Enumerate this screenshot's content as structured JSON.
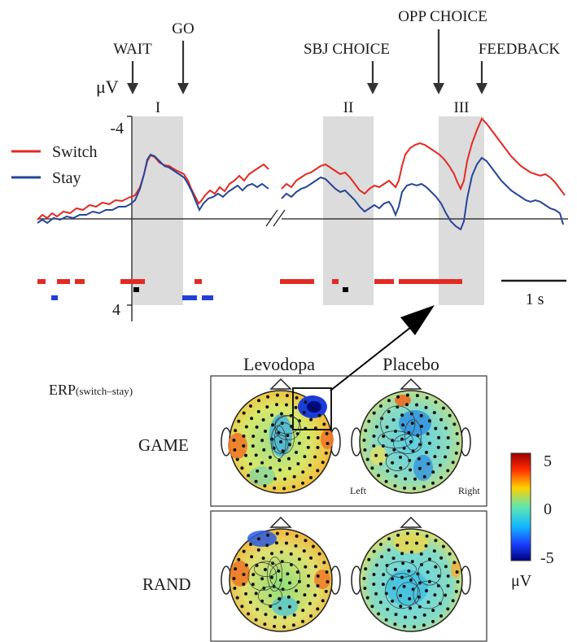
{
  "erp_panel": {
    "y_unit": "μV",
    "y_ticks": [
      "-4",
      "4"
    ],
    "legend": [
      {
        "name": "Switch",
        "color": "#e32a22"
      },
      {
        "name": "Stay",
        "color": "#26469a"
      }
    ],
    "windows": [
      "I",
      "II",
      "III"
    ],
    "events": [
      "WAIT",
      "GO",
      "SBJ CHOICE",
      "OPP CHOICE",
      "FEEDBACK"
    ],
    "scale_bar": "1 s",
    "colors": {
      "switch": "#e32a22",
      "stay": "#26469a",
      "window": "#dcdcdc",
      "significance_black": "#000000"
    }
  },
  "topo_panel": {
    "title_main": "ERP",
    "title_sub": "(switch–stay)",
    "columns": [
      "Levodopa",
      "Placebo"
    ],
    "rows": [
      "GAME",
      "RAND"
    ],
    "hemispheres": [
      "Left",
      "Right"
    ],
    "colorbar": {
      "max": "5",
      "mid": "0",
      "min": "-5",
      "unit": "μV"
    }
  }
}
